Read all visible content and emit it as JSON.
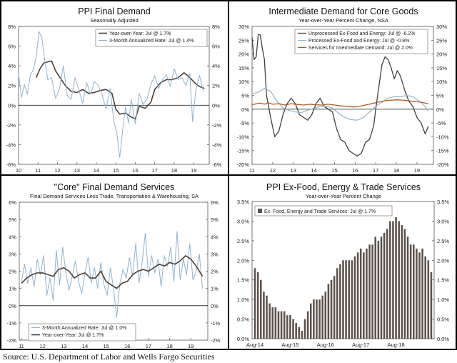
{
  "source": "Source: U.S. Department of Labor and Wells Fargo Securities",
  "colors": {
    "dark": "#4a3f3a",
    "light": "#8fb4cf",
    "orange": "#b5581f",
    "bar": "#5c524c"
  },
  "chart_data": [
    {
      "id": "ppi-final-demand",
      "type": "line",
      "title": "PPI Final Demand",
      "subtitle": "Seasonally Adjusted",
      "ylim": [
        -6,
        8
      ],
      "yticks": [
        "8%",
        "6%",
        "4%",
        "2%",
        "0%",
        "-2%",
        "-4%",
        "-6%"
      ],
      "ytick_values": [
        8,
        6,
        4,
        2,
        0,
        -2,
        -4,
        -6
      ],
      "xlim": [
        10,
        19.8
      ],
      "xticks": [
        "10",
        "11",
        "12",
        "13",
        "14",
        "15",
        "16",
        "17",
        "18",
        "19"
      ],
      "xtick_values": [
        10,
        11,
        12,
        13,
        14,
        15,
        16,
        17,
        18,
        19
      ],
      "legend": [
        "Year-over-Year: Jul @ 1.7%",
        "3-Month Annualized Rate: Jul @ 1.4%"
      ],
      "series": [
        {
          "name": "Year-over-Year: Jul @ 1.7%",
          "color": "#4a3f3a",
          "width": 1.6,
          "x": [
            10.9,
            11.1,
            11.3,
            11.5,
            11.7,
            11.9,
            12.1,
            12.4,
            12.7,
            13.0,
            13.3,
            13.6,
            13.9,
            14.2,
            14.5,
            14.8,
            15.0,
            15.2,
            15.5,
            15.8,
            16.0,
            16.2,
            16.5,
            16.8,
            17.0,
            17.3,
            17.6,
            17.9,
            18.2,
            18.5,
            18.7,
            18.9,
            19.1,
            19.3,
            19.55
          ],
          "y": [
            2.8,
            3.7,
            4.3,
            4.4,
            4.5,
            3.5,
            2.9,
            2.0,
            1.4,
            1.3,
            1.6,
            1.2,
            1.3,
            1.5,
            1.6,
            1.2,
            -0.4,
            -0.9,
            -0.8,
            -1.2,
            -1.4,
            -0.1,
            -0.3,
            0.3,
            1.6,
            2.3,
            2.6,
            2.6,
            2.8,
            3.3,
            3.0,
            2.6,
            2.2,
            1.9,
            1.7
          ]
        },
        {
          "name": "3-Month Annualized Rate: Jul @ 1.4%",
          "color": "#8fb4cf",
          "width": 1,
          "x": [
            10.0,
            10.15,
            10.3,
            10.45,
            10.6,
            10.75,
            10.9,
            11.05,
            11.2,
            11.35,
            11.5,
            11.7,
            11.9,
            12.1,
            12.3,
            12.5,
            12.7,
            12.9,
            13.1,
            13.3,
            13.5,
            13.7,
            13.9,
            14.1,
            14.3,
            14.5,
            14.7,
            14.9,
            15.05,
            15.2,
            15.35,
            15.5,
            15.65,
            15.8,
            16.0,
            16.2,
            16.4,
            16.6,
            16.8,
            17.0,
            17.2,
            17.4,
            17.6,
            17.8,
            18.0,
            18.2,
            18.4,
            18.6,
            18.8,
            18.95,
            19.1,
            19.3,
            19.5
          ],
          "y": [
            3.2,
            0.8,
            2.1,
            1.1,
            3.0,
            3.6,
            4.8,
            7.5,
            6.8,
            4.5,
            2.6,
            2.8,
            0.7,
            1.6,
            4.0,
            1.0,
            0.6,
            2.8,
            1.5,
            0.2,
            2.3,
            1.1,
            2.4,
            2.0,
            1.0,
            -0.4,
            1.7,
            -1.7,
            -2.8,
            -5.3,
            -2.5,
            -0.2,
            -1.8,
            0.6,
            -1.9,
            1.2,
            0.1,
            0.6,
            2.1,
            3.0,
            1.7,
            2.6,
            3.1,
            1.9,
            3.7,
            2.6,
            2.8,
            2.0,
            3.2,
            -1.7,
            1.4,
            3.0,
            1.4
          ]
        }
      ]
    },
    {
      "id": "intermediate-core-goods",
      "type": "line",
      "title": "Intermediate Demand for Core Goods",
      "subtitle": "Year-over-Year Percent Change, NSA",
      "ylim": [
        -20,
        30
      ],
      "yticks_left": [
        "30%",
        "25%",
        "20%",
        "15%",
        "10%",
        "5%",
        "0%",
        "-5%",
        "-10%",
        "-15%",
        "-20%"
      ],
      "yticks_right": [
        "30%",
        "25%",
        "20%",
        "15%",
        "10%",
        "5%",
        "0%",
        "-5%",
        "-10%",
        "-15%",
        "-20%"
      ],
      "ytick_values": [
        30,
        25,
        20,
        15,
        10,
        5,
        0,
        -5,
        -10,
        -15,
        -20
      ],
      "xlim": [
        11,
        19.8
      ],
      "xticks": [
        "11",
        "12",
        "13",
        "14",
        "15",
        "16",
        "17",
        "18",
        "19"
      ],
      "xtick_values": [
        11,
        12,
        13,
        14,
        15,
        16,
        17,
        18,
        19
      ],
      "legend": [
        "Unprocessed Ex-Food and Energy: Jul @ -6.2%",
        "Processed Ex-Food and Energy: Jul @ -0.8%",
        "Services for Intermediate Demand: Jul @ 2.0%"
      ],
      "series": [
        {
          "name": "Unprocessed Ex-Food and Energy: Jul @ -6.2%",
          "color": "#4a3f3a",
          "width": 1.3,
          "x": [
            11.0,
            11.1,
            11.2,
            11.3,
            11.4,
            11.5,
            11.6,
            11.7,
            11.9,
            12.1,
            12.3,
            12.5,
            12.7,
            12.9,
            13.1,
            13.3,
            13.5,
            13.7,
            13.9,
            14.1,
            14.3,
            14.5,
            14.7,
            14.9,
            15.1,
            15.3,
            15.5,
            15.7,
            15.9,
            16.1,
            16.3,
            16.5,
            16.7,
            16.9,
            17.0,
            17.15,
            17.3,
            17.45,
            17.6,
            17.75,
            17.9,
            18.05,
            18.2,
            18.4,
            18.6,
            18.8,
            19.0,
            19.2,
            19.4,
            19.55
          ],
          "y": [
            26,
            18,
            19,
            27,
            27,
            22,
            18,
            5,
            -3,
            -10,
            -8,
            -2,
            2,
            4,
            2,
            -2,
            -3,
            -4,
            -2,
            2,
            4,
            1,
            0,
            -1,
            -7,
            -11,
            -12,
            -15,
            -16,
            -17,
            -16,
            -12,
            -11,
            -6,
            0,
            8,
            16,
            19,
            18,
            15,
            11,
            14,
            12,
            7,
            3,
            1,
            -3,
            -5,
            -9,
            -6.2
          ]
        },
        {
          "name": "Processed Ex-Food and Energy: Jul @ -0.8%",
          "color": "#8fb4cf",
          "width": 1.2,
          "x": [
            11.0,
            11.3,
            11.6,
            11.9,
            12.2,
            12.5,
            12.8,
            13.1,
            13.4,
            13.7,
            14.0,
            14.3,
            14.6,
            14.9,
            15.2,
            15.5,
            15.8,
            16.1,
            16.4,
            16.7,
            17.0,
            17.3,
            17.6,
            17.9,
            18.2,
            18.5,
            18.8,
            19.1,
            19.4,
            19.55
          ],
          "y": [
            5.5,
            6.2,
            7.5,
            6.5,
            3.0,
            0.5,
            -0.5,
            -1.0,
            -1.2,
            -0.4,
            0.3,
            1.0,
            1.0,
            0.5,
            -1.5,
            -3.0,
            -3.8,
            -4.0,
            -3.0,
            -1.0,
            1.0,
            2.5,
            4.0,
            4.5,
            4.5,
            5.0,
            4.5,
            3.0,
            1.0,
            -0.8
          ]
        },
        {
          "name": "Services for Intermediate Demand: Jul @ 2.0%",
          "color": "#b5581f",
          "width": 1.3,
          "x": [
            11.0,
            11.2,
            11.4,
            11.6,
            11.8,
            12.0,
            12.3,
            12.6,
            12.9,
            13.2,
            13.5,
            13.8,
            14.1,
            14.4,
            14.7,
            15.0,
            15.3,
            15.6,
            15.9,
            16.2,
            16.5,
            16.8,
            17.1,
            17.4,
            17.7,
            18.0,
            18.3,
            18.6,
            18.9,
            19.2,
            19.55
          ],
          "y": [
            1.6,
            2.0,
            2.2,
            1.8,
            2.3,
            1.8,
            2.0,
            1.5,
            2.0,
            1.7,
            1.5,
            1.8,
            1.6,
            1.5,
            1.8,
            1.5,
            1.2,
            1.0,
            0.8,
            1.0,
            1.5,
            2.0,
            2.5,
            3.0,
            3.2,
            3.4,
            3.3,
            3.0,
            2.8,
            2.5,
            2.0
          ]
        }
      ]
    },
    {
      "id": "core-final-demand-services",
      "type": "line",
      "title": "\"Core\" Final Demand Services",
      "subtitle": "Final Demand Services Less Trade, Transportation & Warehousing, SA",
      "ylim": [
        -2,
        6
      ],
      "yticks": [
        "6%",
        "5%",
        "4%",
        "3%",
        "2%",
        "1%",
        "0%",
        "-1%",
        "-2%"
      ],
      "ytick_values": [
        6,
        5,
        4,
        3,
        2,
        1,
        0,
        -1,
        -2
      ],
      "xlim": [
        10.9,
        19.8
      ],
      "xticks": [
        "11",
        "12",
        "13",
        "14",
        "15",
        "16",
        "17",
        "18",
        "19"
      ],
      "xtick_values": [
        11,
        12,
        13,
        14,
        15,
        16,
        17,
        18,
        19
      ],
      "legend": [
        "3-Month Annualized Rate: Jul @ 1.0%",
        "Year-over-Year: Jul @ 1.7%"
      ],
      "series": [
        {
          "name": "3-Month Annualized Rate: Jul @ 1.0%",
          "color": "#8fb4cf",
          "width": 1,
          "x": [
            11.0,
            11.15,
            11.3,
            11.45,
            11.6,
            11.75,
            11.9,
            12.05,
            12.2,
            12.35,
            12.5,
            12.65,
            12.8,
            12.95,
            13.1,
            13.25,
            13.4,
            13.55,
            13.7,
            13.85,
            14.0,
            14.15,
            14.3,
            14.45,
            14.6,
            14.75,
            14.9,
            15.05,
            15.2,
            15.35,
            15.5,
            15.65,
            15.8,
            15.95,
            16.1,
            16.25,
            16.4,
            16.55,
            16.7,
            16.85,
            17.0,
            17.15,
            17.3,
            17.45,
            17.6,
            17.75,
            17.9,
            18.05,
            18.2,
            18.35,
            18.5,
            18.65,
            18.8,
            18.95,
            19.1,
            19.25,
            19.4,
            19.55
          ],
          "y": [
            1.4,
            2.4,
            1.3,
            2.2,
            1.1,
            2.7,
            1.8,
            2.9,
            0.6,
            1.6,
            0.3,
            3.2,
            1.2,
            3.4,
            1.9,
            0.9,
            1.7,
            2.6,
            1.4,
            0.7,
            1.9,
            2.8,
            1.3,
            2.2,
            1.0,
            2.5,
            1.2,
            0.6,
            2.2,
            1.0,
            -0.7,
            1.3,
            2.1,
            1.6,
            2.8,
            1.7,
            3.6,
            1.3,
            2.5,
            4.2,
            1.7,
            2.9,
            1.9,
            2.7,
            1.1,
            2.9,
            2.3,
            3.4,
            1.4,
            4.3,
            1.5,
            2.7,
            1.8,
            3.6,
            1.5,
            2.0,
            3.0,
            1.0
          ]
        },
        {
          "name": "Year-over-Year: Jul @ 1.7%",
          "color": "#4a3f3a",
          "width": 1.6,
          "x": [
            11.0,
            11.25,
            11.5,
            11.75,
            12.0,
            12.25,
            12.5,
            12.75,
            13.0,
            13.25,
            13.5,
            13.75,
            14.0,
            14.25,
            14.5,
            14.75,
            15.0,
            15.25,
            15.5,
            15.75,
            16.0,
            16.25,
            16.5,
            16.75,
            17.0,
            17.25,
            17.5,
            17.75,
            18.0,
            18.25,
            18.5,
            18.75,
            19.0,
            19.25,
            19.55
          ],
          "y": [
            1.3,
            1.6,
            1.8,
            1.9,
            1.9,
            1.8,
            1.7,
            2.1,
            2.2,
            2.0,
            1.6,
            1.8,
            1.9,
            1.6,
            1.6,
            2.0,
            1.4,
            1.2,
            1.0,
            1.3,
            1.4,
            1.8,
            2.0,
            2.1,
            2.0,
            2.2,
            2.4,
            2.3,
            2.5,
            2.4,
            2.6,
            2.9,
            2.7,
            2.3,
            1.7
          ]
        }
      ]
    },
    {
      "id": "ppi-ex-food-energy-trade",
      "type": "bar",
      "title": "PPI Ex-Food, Energy & Trade Services",
      "subtitle": "Year-over-Year Percent Change",
      "ylim": [
        0,
        3.5
      ],
      "yticks": [
        "3.5%",
        "3.0%",
        "2.5%",
        "2.0%",
        "1.5%",
        "1.0%",
        "0.5%",
        "0.0%"
      ],
      "ytick_values": [
        3.5,
        3.0,
        2.5,
        2.0,
        1.5,
        1.0,
        0.5,
        0.0
      ],
      "xticks": [
        "Aug-14",
        "Aug-15",
        "Aug-16",
        "Aug-17",
        "Aug-18"
      ],
      "xtick_indices": [
        0,
        12,
        24,
        36,
        48
      ],
      "legend": [
        "Ex. Food, Energy and Trade Services: Jul @ 1.7%"
      ],
      "series": [
        {
          "name": "Ex. Food, Energy and Trade Services: Jul @ 1.7%",
          "color": "#5c524c",
          "values": [
            1.8,
            1.7,
            1.5,
            1.2,
            1.1,
            0.9,
            0.8,
            0.8,
            0.7,
            0.7,
            0.7,
            0.6,
            0.6,
            0.5,
            0.4,
            0.3,
            0.2,
            0.5,
            0.7,
            0.9,
            1.0,
            1.0,
            1.0,
            1.1,
            1.2,
            1.4,
            1.5,
            1.6,
            1.8,
            1.9,
            2.0,
            2.0,
            2.0,
            2.0,
            2.1,
            2.2,
            2.3,
            2.2,
            2.3,
            2.4,
            2.4,
            2.6,
            2.5,
            2.6,
            2.7,
            2.8,
            3.0,
            3.0,
            3.1,
            3.0,
            2.9,
            2.8,
            2.6,
            2.4,
            2.4,
            2.3,
            2.2,
            2.3,
            2.1,
            2.0,
            1.7
          ]
        }
      ]
    }
  ]
}
